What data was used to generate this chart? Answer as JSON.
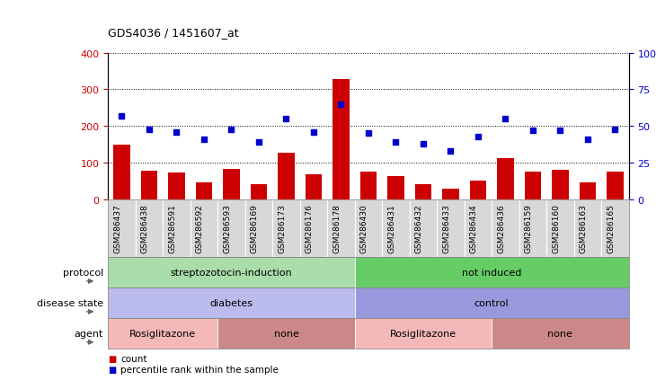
{
  "title": "GDS4036 / 1451607_at",
  "samples": [
    "GSM286437",
    "GSM286438",
    "GSM286591",
    "GSM286592",
    "GSM286593",
    "GSM286169",
    "GSM286173",
    "GSM286176",
    "GSM286178",
    "GSM286430",
    "GSM286431",
    "GSM286432",
    "GSM286433",
    "GSM286434",
    "GSM286436",
    "GSM286159",
    "GSM286160",
    "GSM286163",
    "GSM286165"
  ],
  "counts": [
    148,
    78,
    74,
    47,
    83,
    40,
    127,
    68,
    328,
    76,
    63,
    40,
    28,
    50,
    113,
    76,
    80,
    46,
    76
  ],
  "percentiles": [
    57,
    48,
    46,
    41,
    48,
    39,
    55,
    46,
    65,
    45,
    39,
    38,
    33,
    43,
    55,
    47,
    47,
    41,
    48
  ],
  "ylim_left": [
    0,
    400
  ],
  "ylim_right": [
    0,
    100
  ],
  "yticks_left": [
    0,
    100,
    200,
    300,
    400
  ],
  "yticks_right": [
    0,
    25,
    50,
    75,
    100
  ],
  "bar_color": "#cc0000",
  "dot_color": "#0000cc",
  "protocol_groups": [
    {
      "label": "streptozotocin-induction",
      "start": 0,
      "end": 9,
      "color": "#aaddaa"
    },
    {
      "label": "not induced",
      "start": 9,
      "end": 19,
      "color": "#66cc66"
    }
  ],
  "disease_groups": [
    {
      "label": "diabetes",
      "start": 0,
      "end": 9,
      "color": "#bbbbee"
    },
    {
      "label": "control",
      "start": 9,
      "end": 19,
      "color": "#9999dd"
    }
  ],
  "agent_groups": [
    {
      "label": "Rosiglitazone",
      "start": 0,
      "end": 4,
      "color": "#f4b8b8"
    },
    {
      "label": "none",
      "start": 4,
      "end": 9,
      "color": "#cc8888"
    },
    {
      "label": "Rosiglitazone",
      "start": 9,
      "end": 14,
      "color": "#f4b8b8"
    },
    {
      "label": "none",
      "start": 14,
      "end": 19,
      "color": "#cc8888"
    }
  ],
  "row_labels": [
    "protocol",
    "disease state",
    "agent"
  ],
  "legend_items": [
    {
      "label": "count",
      "color": "#cc0000"
    },
    {
      "label": "percentile rank within the sample",
      "color": "#0000cc"
    }
  ]
}
